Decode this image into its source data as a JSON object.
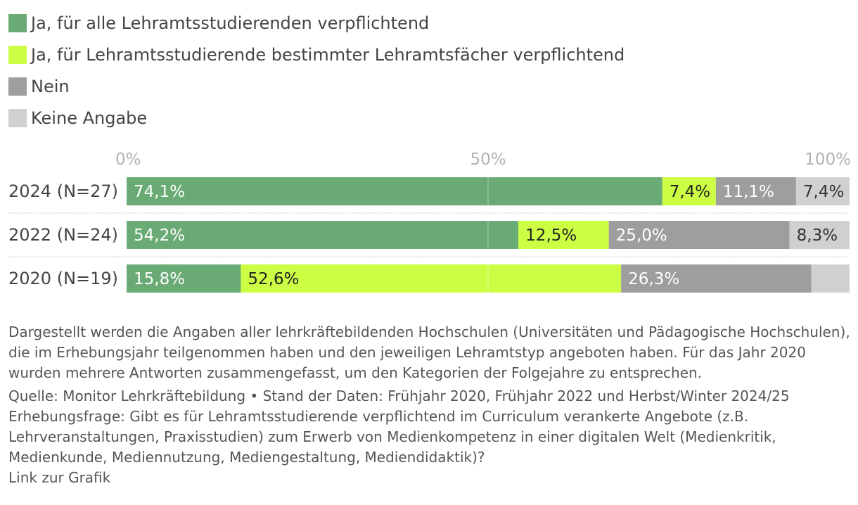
{
  "chart_data": {
    "type": "bar",
    "orientation": "horizontal",
    "stacked": true,
    "stack_mode": "percent",
    "title": "",
    "xlim": [
      0,
      100
    ],
    "x_ticks": [
      {
        "value": 0,
        "label": "0%"
      },
      {
        "value": 50,
        "label": "50%"
      },
      {
        "value": 100,
        "label": "100%"
      }
    ],
    "categories": [
      "2024 (N=27)",
      "2022 (N=24)",
      "2020 (N=19)"
    ],
    "series": [
      {
        "name": "Ja, für alle Lehramtsstudierenden verpflichtend",
        "color": "#69aa75",
        "label_color": "#ffffff",
        "values": [
          74.1,
          54.2,
          15.8
        ],
        "labels": [
          "74,1%",
          "54,2%",
          "15,8%"
        ]
      },
      {
        "name": "Ja, für Lehramtsstudierende bestimmter Lehramtsfächer verpflichtend",
        "color": "#ccff44",
        "label_color": "#222222",
        "values": [
          7.4,
          12.5,
          52.6
        ],
        "labels": [
          "7,4%",
          "12,5%",
          "52,6%"
        ]
      },
      {
        "name": "Nein",
        "color": "#9e9e9e",
        "label_color": "#ffffff",
        "values": [
          11.1,
          25.0,
          26.3
        ],
        "labels": [
          "11,1%",
          "25,0%",
          "26,3%"
        ]
      },
      {
        "name": "Keine Angabe",
        "color": "#d0d0d0",
        "label_color": "#333333",
        "values": [
          7.4,
          8.3,
          5.3
        ],
        "labels": [
          "7,4%",
          "8,3%",
          ""
        ]
      }
    ]
  },
  "notes": {
    "description": "Dargestellt werden die Angaben aller lehrkräftebildenden Hochschulen (Universitäten und Pädagogische Hochschulen), die im Erhebungsjahr teilgenommen haben und den jeweiligen Lehramtstyp angeboten haben. Für das Jahr 2020 wurden mehrere Antworten zusammengefasst, um den Kategorien der Folgejahre zu entsprechen.",
    "source": "Quelle: Monitor Lehrkräftebildung • Stand der Daten: Frühjahr 2020, Frühjahr 2022 und Herbst/Winter 2024/25",
    "question": "Erhebungsfrage: Gibt es für Lehramtsstudierende verpflichtend im Curriculum verankerte Angebote (z.B. Lehrveranstaltungen, Praxisstudien) zum Erwerb von Medienkompetenz in einer digitalen Welt (Medienkritik, Medienkunde, Mediennutzung, Mediengestaltung, Mediendidaktik)?",
    "link": "Link zur Grafik"
  }
}
